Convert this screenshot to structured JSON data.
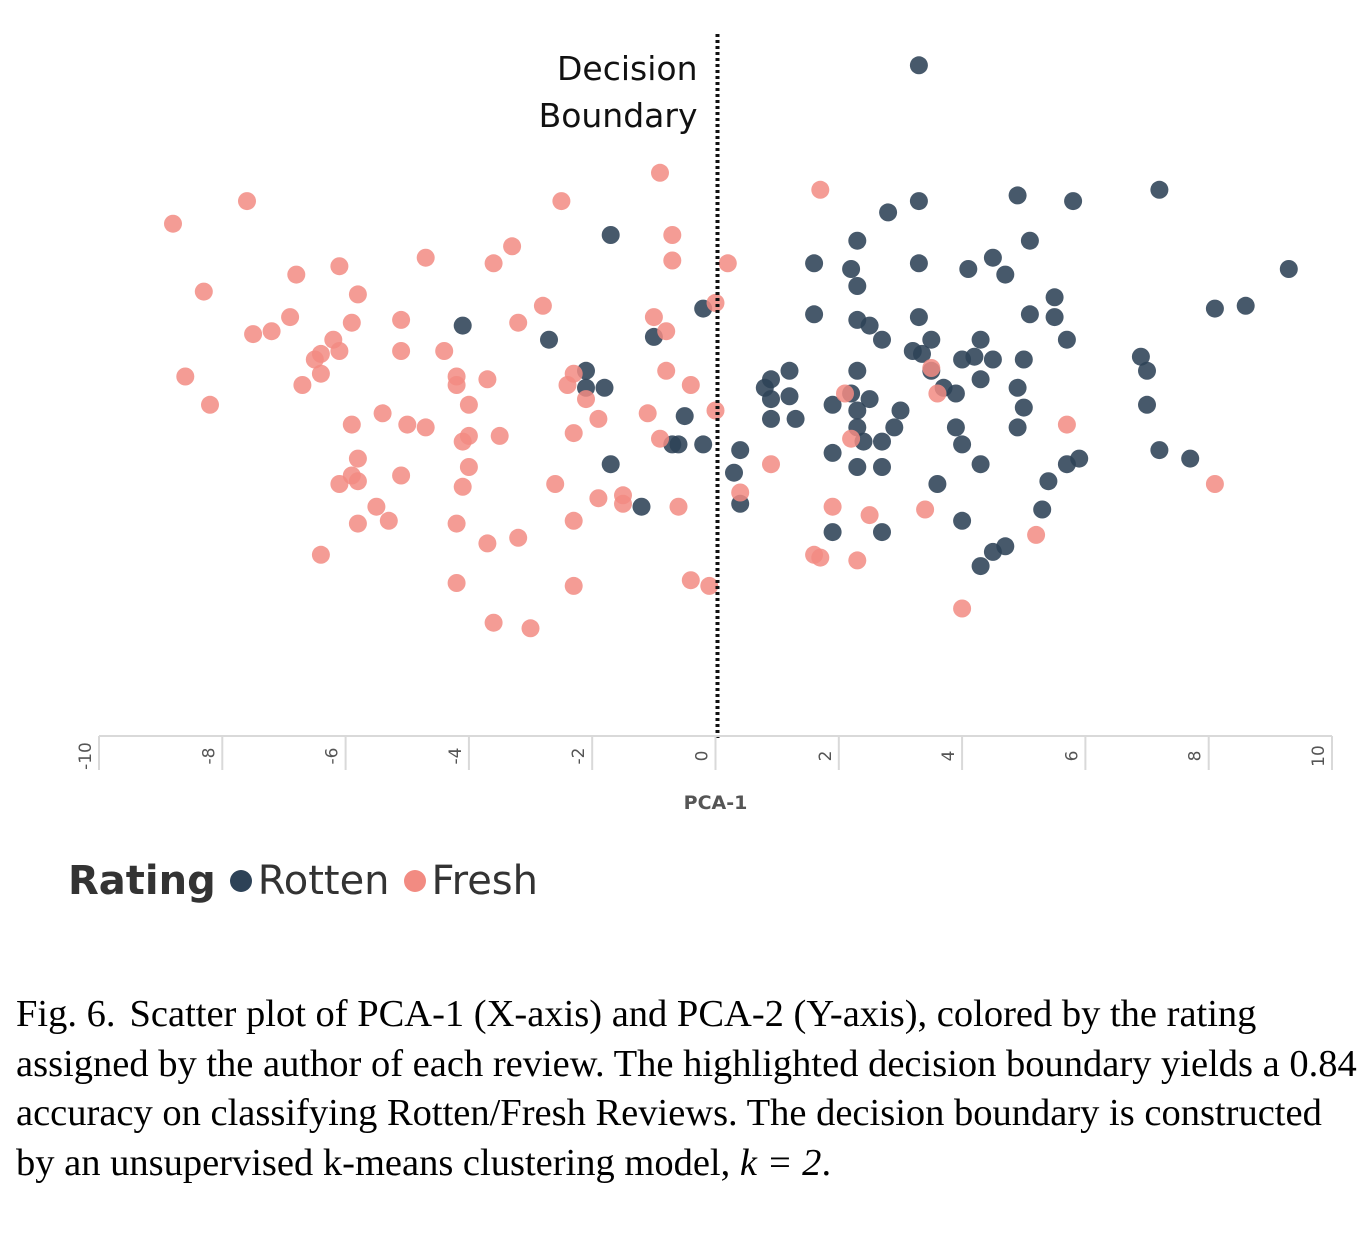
{
  "chart_data": {
    "type": "scatter",
    "title": "",
    "xlabel": "PCA-1",
    "ylabel": "",
    "xlim": [
      -10,
      10
    ],
    "ylim": [
      -4.8,
      7.8
    ],
    "x_ticks": [
      -10,
      -8,
      -6,
      -4,
      -2,
      0,
      2,
      4,
      6,
      8,
      10
    ],
    "x_tick_labels": [
      "-10",
      "-8",
      "-6",
      "-4",
      "-2",
      "0",
      "2",
      "4",
      "6",
      "8",
      "10"
    ],
    "decision_boundary": {
      "x": 0,
      "label_lines": [
        "Decision",
        "Boundary"
      ]
    },
    "legend_title": "Rating",
    "series": [
      {
        "name": "Rotten",
        "color": "#2d4257",
        "points": [
          [
            3.3,
            7.0
          ],
          [
            7.2,
            4.8
          ],
          [
            4.9,
            4.7
          ],
          [
            5.8,
            4.6
          ],
          [
            3.3,
            4.6
          ],
          [
            2.8,
            4.4
          ],
          [
            -1.7,
            4.0
          ],
          [
            2.3,
            3.9
          ],
          [
            5.1,
            3.9
          ],
          [
            4.5,
            3.6
          ],
          [
            1.6,
            3.5
          ],
          [
            3.3,
            3.5
          ],
          [
            2.2,
            3.4
          ],
          [
            4.1,
            3.4
          ],
          [
            9.3,
            3.4
          ],
          [
            4.7,
            3.3
          ],
          [
            2.3,
            3.1
          ],
          [
            5.5,
            2.9
          ],
          [
            8.1,
            2.7
          ],
          [
            8.6,
            2.75
          ],
          [
            -0.2,
            2.7
          ],
          [
            1.6,
            2.6
          ],
          [
            5.1,
            2.6
          ],
          [
            5.5,
            2.55
          ],
          [
            3.3,
            2.55
          ],
          [
            2.3,
            2.5
          ],
          [
            2.5,
            2.4
          ],
          [
            -4.1,
            2.4
          ],
          [
            -1.0,
            2.2
          ],
          [
            -2.7,
            2.15
          ],
          [
            2.7,
            2.15
          ],
          [
            3.5,
            2.15
          ],
          [
            4.3,
            2.15
          ],
          [
            5.7,
            2.15
          ],
          [
            3.2,
            1.95
          ],
          [
            3.35,
            1.9
          ],
          [
            6.9,
            1.85
          ],
          [
            4.2,
            1.85
          ],
          [
            4.5,
            1.8
          ],
          [
            4.0,
            1.8
          ],
          [
            5.0,
            1.8
          ],
          [
            3.5,
            1.6
          ],
          [
            7.0,
            1.6
          ],
          [
            -2.1,
            1.6
          ],
          [
            1.2,
            1.6
          ],
          [
            2.3,
            1.6
          ],
          [
            0.9,
            1.45
          ],
          [
            4.3,
            1.45
          ],
          [
            -2.1,
            1.3
          ],
          [
            -1.8,
            1.3
          ],
          [
            0.8,
            1.3
          ],
          [
            2.2,
            1.2
          ],
          [
            3.7,
            1.3
          ],
          [
            4.9,
            1.3
          ],
          [
            3.9,
            1.2
          ],
          [
            0.9,
            1.1
          ],
          [
            1.2,
            1.15
          ],
          [
            2.5,
            1.1
          ],
          [
            1.9,
            1.0
          ],
          [
            2.3,
            0.9
          ],
          [
            3.0,
            0.9
          ],
          [
            5.0,
            0.95
          ],
          [
            7.0,
            1.0
          ],
          [
            -0.5,
            0.8
          ],
          [
            0.9,
            0.75
          ],
          [
            1.3,
            0.75
          ],
          [
            2.3,
            0.6
          ],
          [
            2.9,
            0.6
          ],
          [
            3.9,
            0.6
          ],
          [
            4.9,
            0.6
          ],
          [
            -0.6,
            0.3
          ],
          [
            -0.7,
            0.3
          ],
          [
            -0.2,
            0.3
          ],
          [
            2.4,
            0.35
          ],
          [
            2.7,
            0.35
          ],
          [
            4.0,
            0.3
          ],
          [
            0.4,
            0.2
          ],
          [
            1.9,
            0.15
          ],
          [
            7.2,
            0.2
          ],
          [
            5.9,
            0.05
          ],
          [
            7.7,
            0.05
          ],
          [
            -1.7,
            -0.05
          ],
          [
            2.3,
            -0.1
          ],
          [
            2.7,
            -0.1
          ],
          [
            4.3,
            -0.05
          ],
          [
            5.7,
            -0.05
          ],
          [
            0.3,
            -0.2
          ],
          [
            3.6,
            -0.4
          ],
          [
            5.4,
            -0.35
          ],
          [
            -1.2,
            -0.8
          ],
          [
            0.4,
            -0.75
          ],
          [
            5.3,
            -0.85
          ],
          [
            4.0,
            -1.05
          ],
          [
            1.9,
            -1.25
          ],
          [
            2.7,
            -1.25
          ],
          [
            4.7,
            -1.5
          ],
          [
            4.5,
            -1.6
          ],
          [
            4.3,
            -1.85
          ]
        ]
      },
      {
        "name": "Fresh",
        "color": "#f28b82",
        "points": [
          [
            -0.9,
            5.1
          ],
          [
            -7.6,
            4.6
          ],
          [
            -2.5,
            4.6
          ],
          [
            1.7,
            4.8
          ],
          [
            -8.8,
            4.2
          ],
          [
            -0.7,
            4.0
          ],
          [
            -3.3,
            3.8
          ],
          [
            -4.7,
            3.6
          ],
          [
            -3.6,
            3.5
          ],
          [
            -0.7,
            3.55
          ],
          [
            0.2,
            3.5
          ],
          [
            -6.1,
            3.45
          ],
          [
            -6.8,
            3.3
          ],
          [
            -8.3,
            3.0
          ],
          [
            -5.8,
            2.95
          ],
          [
            -2.8,
            2.75
          ],
          [
            0.0,
            2.8
          ],
          [
            -6.9,
            2.55
          ],
          [
            -5.1,
            2.5
          ],
          [
            -5.9,
            2.45
          ],
          [
            -3.2,
            2.45
          ],
          [
            -1.0,
            2.55
          ],
          [
            -0.8,
            2.3
          ],
          [
            -7.5,
            2.25
          ],
          [
            -7.2,
            2.3
          ],
          [
            -6.2,
            2.15
          ],
          [
            -6.1,
            1.95
          ],
          [
            -6.4,
            1.9
          ],
          [
            -5.1,
            1.95
          ],
          [
            -4.4,
            1.95
          ],
          [
            -6.5,
            1.8
          ],
          [
            -6.4,
            1.55
          ],
          [
            -0.8,
            1.6
          ],
          [
            3.5,
            1.65
          ],
          [
            -8.6,
            1.5
          ],
          [
            -4.2,
            1.5
          ],
          [
            -3.7,
            1.45
          ],
          [
            -2.3,
            1.55
          ],
          [
            -6.7,
            1.35
          ],
          [
            -4.2,
            1.35
          ],
          [
            -2.4,
            1.35
          ],
          [
            -0.4,
            1.35
          ],
          [
            2.1,
            1.2
          ],
          [
            3.6,
            1.2
          ],
          [
            -8.2,
            1.0
          ],
          [
            -4.0,
            1.0
          ],
          [
            -2.1,
            1.1
          ],
          [
            -0.0,
            0.9
          ],
          [
            -5.4,
            0.85
          ],
          [
            -1.1,
            0.85
          ],
          [
            -5.9,
            0.65
          ],
          [
            -5.0,
            0.65
          ],
          [
            -4.7,
            0.6
          ],
          [
            -1.9,
            0.75
          ],
          [
            -4.0,
            0.45
          ],
          [
            -4.1,
            0.35
          ],
          [
            -3.5,
            0.45
          ],
          [
            -2.3,
            0.5
          ],
          [
            2.2,
            0.4
          ],
          [
            -0.9,
            0.4
          ],
          [
            5.7,
            0.65
          ],
          [
            -5.8,
            0.05
          ],
          [
            -4.0,
            -0.1
          ],
          [
            0.9,
            -0.05
          ],
          [
            -5.9,
            -0.25
          ],
          [
            -6.1,
            -0.4
          ],
          [
            -5.1,
            -0.25
          ],
          [
            -5.8,
            -0.35
          ],
          [
            -4.1,
            -0.45
          ],
          [
            -2.6,
            -0.4
          ],
          [
            0.4,
            -0.55
          ],
          [
            8.1,
            -0.4
          ],
          [
            -1.5,
            -0.6
          ],
          [
            -1.5,
            -0.75
          ],
          [
            -1.9,
            -0.65
          ],
          [
            -5.5,
            -0.8
          ],
          [
            -0.6,
            -0.8
          ],
          [
            1.9,
            -0.8
          ],
          [
            3.4,
            -0.85
          ],
          [
            2.5,
            -0.95
          ],
          [
            -5.8,
            -1.1
          ],
          [
            -5.3,
            -1.05
          ],
          [
            -4.2,
            -1.1
          ],
          [
            -2.3,
            -1.05
          ],
          [
            -3.2,
            -1.35
          ],
          [
            -3.7,
            -1.45
          ],
          [
            5.2,
            -1.3
          ],
          [
            -6.4,
            -1.65
          ],
          [
            1.6,
            -1.65
          ],
          [
            1.7,
            -1.7
          ],
          [
            2.3,
            -1.75
          ],
          [
            -4.2,
            -2.15
          ],
          [
            -2.3,
            -2.2
          ],
          [
            -0.4,
            -2.1
          ],
          [
            -0.1,
            -2.2
          ],
          [
            4.0,
            -2.6
          ],
          [
            -3.6,
            -2.85
          ],
          [
            -3.0,
            -2.95
          ]
        ]
      }
    ]
  },
  "caption": {
    "fig_label": "Fig. 6.",
    "text_before_math": "Scatter plot of PCA-1 (X-axis) and PCA-2 (Y-axis), colored by the rating assigned by the author of each review. The highlighted decision boundary yields a 0.84 accuracy on classifying Rotten/Fresh Reviews. The decision boundary is constructed by an unsupervised k-means clustering model, ",
    "math": "k = 2",
    "text_after_math": "."
  }
}
